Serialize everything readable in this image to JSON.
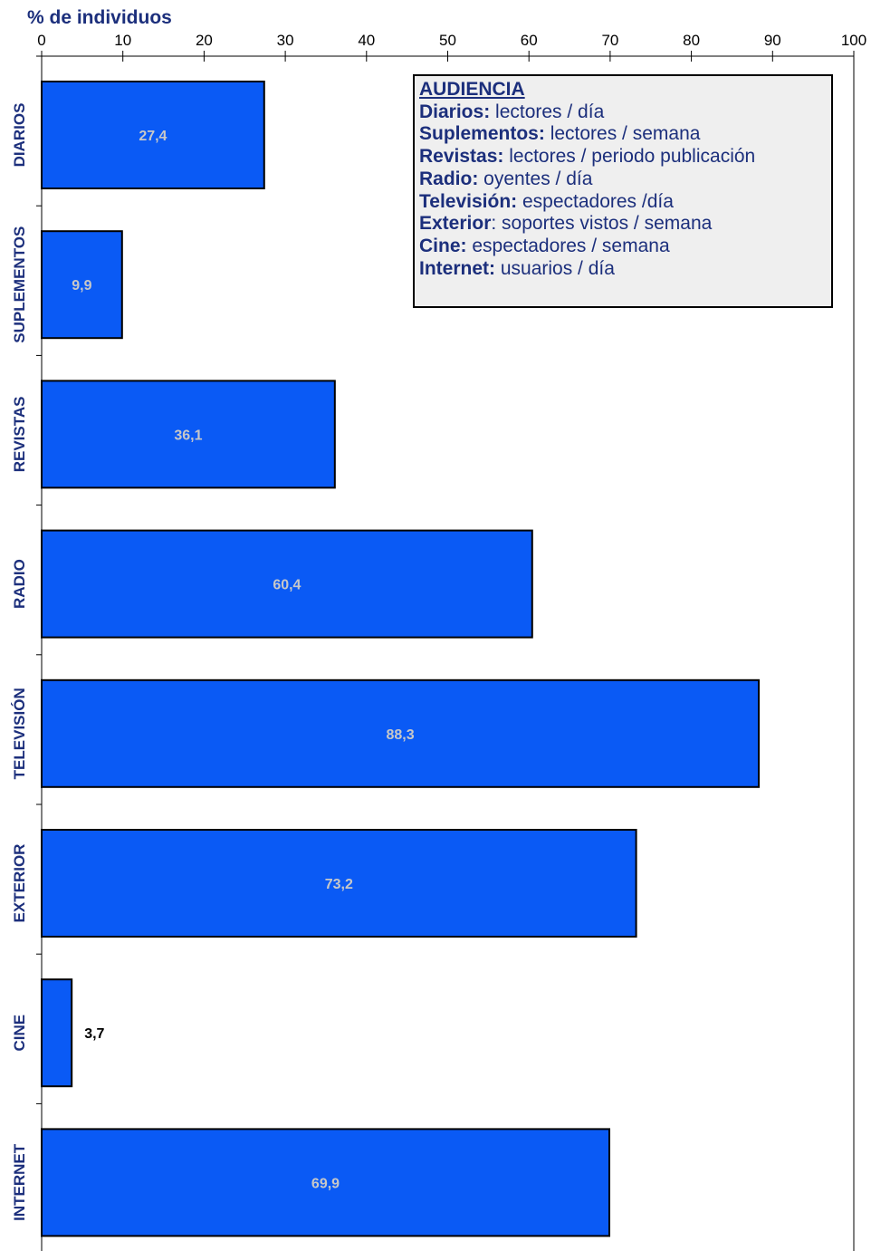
{
  "chart_data": {
    "type": "bar",
    "orientation": "horizontal",
    "title": "% de individuos",
    "categories": [
      "DIARIOS",
      "SUPLEMENTOS",
      "REVISTAS",
      "RADIO",
      "TELEVISIÓN",
      "EXTERIOR",
      "CINE",
      "INTERNET"
    ],
    "values": [
      27.4,
      9.9,
      36.1,
      60.4,
      88.3,
      73.2,
      3.7,
      69.9
    ],
    "data_labels": [
      "27,4",
      "9,9",
      "36,1",
      "60,4",
      "88,3",
      "73,2",
      "3,7",
      "69,9"
    ],
    "value_axis": {
      "position": "top",
      "range": [
        0,
        100
      ],
      "ticks": [
        0,
        10,
        20,
        30,
        40,
        50,
        60,
        70,
        80,
        90,
        100
      ],
      "tick_labels": [
        "0",
        "10",
        "20",
        "30",
        "40",
        "50",
        "60",
        "70",
        "80",
        "90",
        "100"
      ]
    },
    "grid": false,
    "colors": {
      "bar_fill": "#0a5af5",
      "bar_stroke": "#000000",
      "inside_label": "#c8c8c8",
      "outside_label": "#000000",
      "title": "#1c2f7c",
      "category_label": "#1c2f7c",
      "legend_text": "#1c2f7c",
      "legend_bg": "#efefef"
    },
    "legend": {
      "placement": "top-right",
      "title": "AUDIENCIA",
      "entries": [
        {
          "key": "Diarios:",
          "text": " lectores / día"
        },
        {
          "key": "Suplementos:",
          "text": " lectores / semana"
        },
        {
          "key": "Revistas:",
          "text": " lectores / periodo publicación"
        },
        {
          "key": "Radio:",
          "text": " oyentes / día"
        },
        {
          "key": "Televisión:",
          "text": " espectadores /día"
        },
        {
          "key": "Exterior",
          "text": ": soportes vistos / semana"
        },
        {
          "key": "Cine:",
          "text": " espectadores / semana"
        },
        {
          "key": "Internet:",
          "text": " usuarios / día"
        }
      ]
    }
  }
}
